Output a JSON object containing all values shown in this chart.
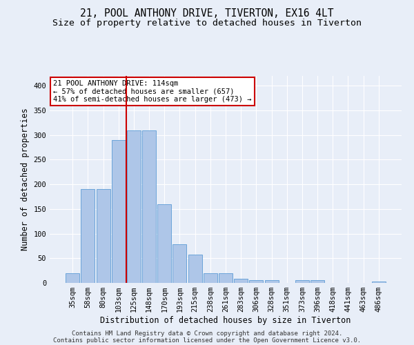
{
  "title": "21, POOL ANTHONY DRIVE, TIVERTON, EX16 4LT",
  "subtitle": "Size of property relative to detached houses in Tiverton",
  "xlabel": "Distribution of detached houses by size in Tiverton",
  "ylabel": "Number of detached properties",
  "bin_labels": [
    "35sqm",
    "58sqm",
    "80sqm",
    "103sqm",
    "125sqm",
    "148sqm",
    "170sqm",
    "193sqm",
    "215sqm",
    "238sqm",
    "261sqm",
    "283sqm",
    "306sqm",
    "328sqm",
    "351sqm",
    "373sqm",
    "396sqm",
    "418sqm",
    "441sqm",
    "463sqm",
    "486sqm"
  ],
  "bar_values": [
    20,
    190,
    190,
    290,
    310,
    310,
    160,
    78,
    57,
    20,
    20,
    8,
    5,
    5,
    0,
    5,
    5,
    0,
    0,
    0,
    3
  ],
  "bar_color": "#aec6e8",
  "bar_edgecolor": "#5b9bd5",
  "vline_x": 3.5,
  "annotation_text": "21 POOL ANTHONY DRIVE: 114sqm\n← 57% of detached houses are smaller (657)\n41% of semi-detached houses are larger (473) →",
  "annotation_box_color": "#ffffff",
  "annotation_box_edgecolor": "#cc0000",
  "footer_line1": "Contains HM Land Registry data © Crown copyright and database right 2024.",
  "footer_line2": "Contains public sector information licensed under the Open Government Licence v3.0.",
  "background_color": "#e8eef8",
  "grid_color": "#ffffff",
  "ylim": [
    0,
    420
  ],
  "yticks": [
    0,
    50,
    100,
    150,
    200,
    250,
    300,
    350,
    400
  ],
  "title_fontsize": 10.5,
  "subtitle_fontsize": 9.5,
  "axis_label_fontsize": 8.5,
  "tick_fontsize": 7.5,
  "footer_fontsize": 6.5
}
